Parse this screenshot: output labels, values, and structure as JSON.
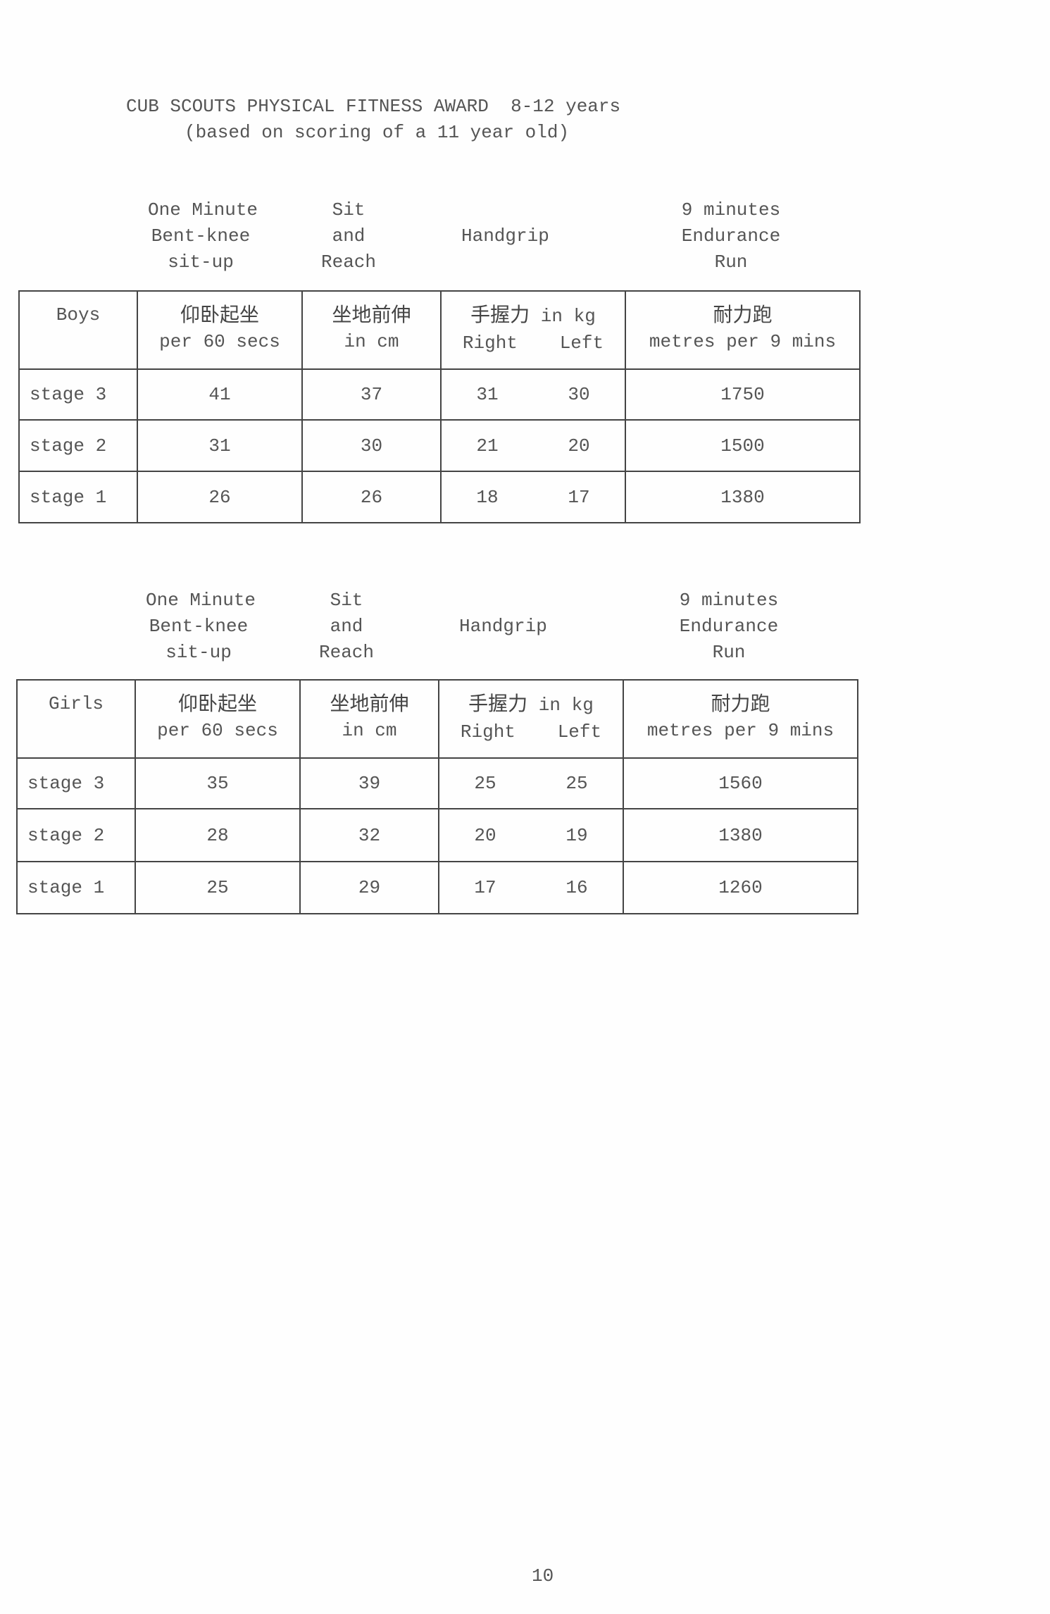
{
  "title": {
    "line1": "CUB SCOUTS PHYSICAL FITNESS AWARD  8-12 years",
    "line2": "(based on scoring of a 11 year old)"
  },
  "column_labels": {
    "situp": [
      "One Minute",
      "Bent-knee",
      "sit-up"
    ],
    "sitreach": [
      "Sit",
      "and",
      "Reach"
    ],
    "handgrip": "Handgrip",
    "run": [
      "9 minutes",
      "Endurance",
      "Run"
    ]
  },
  "header_cells": {
    "situp_cn": "仰卧起坐",
    "situp_unit": "per 60 secs",
    "sitreach_cn": "坐地前伸",
    "sitreach_unit": "in cm",
    "handgrip_cn": "手握力",
    "handgrip_unit": "in kg",
    "right": "Right",
    "left": "Left",
    "run_cn": "耐力跑",
    "run_unit": "metres per 9 mins"
  },
  "tables": [
    {
      "group": "Boys",
      "rows": [
        {
          "stage": "stage 3",
          "situp": "41",
          "sitreach": "37",
          "right": "31",
          "left": "30",
          "run": "1750"
        },
        {
          "stage": "stage 2",
          "situp": "31",
          "sitreach": "30",
          "right": "21",
          "left": "20",
          "run": "1500"
        },
        {
          "stage": "stage 1",
          "situp": "26",
          "sitreach": "26",
          "right": "18",
          "left": "17",
          "run": "1380"
        }
      ]
    },
    {
      "group": "Girls",
      "rows": [
        {
          "stage": "stage 3",
          "situp": "35",
          "sitreach": "39",
          "right": "25",
          "left": "25",
          "run": "1560"
        },
        {
          "stage": "stage 2",
          "situp": "28",
          "sitreach": "32",
          "right": "20",
          "left": "19",
          "run": "1380"
        },
        {
          "stage": "stage 1",
          "situp": "25",
          "sitreach": "29",
          "right": "17",
          "left": "16",
          "run": "1260"
        }
      ]
    }
  ],
  "page_number": "10"
}
